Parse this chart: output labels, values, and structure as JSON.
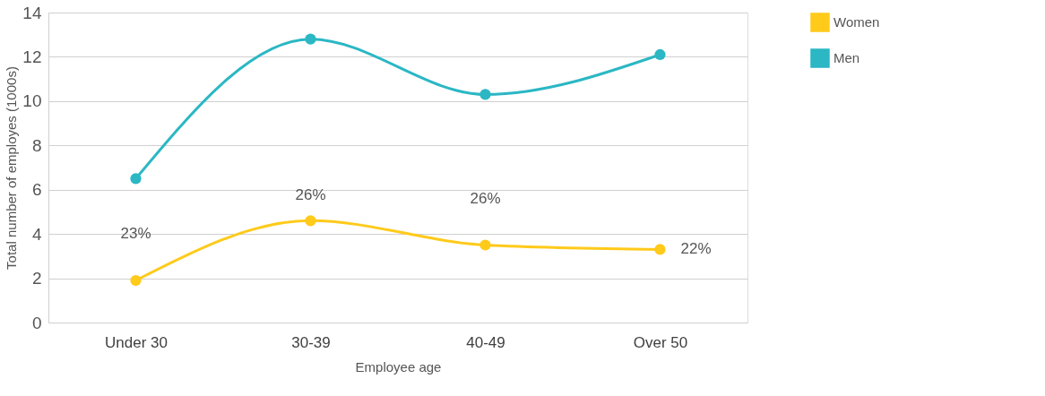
{
  "chart_data": {
    "type": "line",
    "xlabel": "Employee age",
    "ylabel": "Total number of employes (1000s)",
    "categories": [
      "Under 30",
      "30-39",
      "40-49",
      "Over 50"
    ],
    "series": [
      {
        "name": "Women",
        "color": "#ffca1a",
        "values": [
          1.9,
          4.6,
          3.5,
          3.3
        ]
      },
      {
        "name": "Men",
        "color": "#2bb7c4",
        "values": [
          6.5,
          12.8,
          10.3,
          12.1
        ]
      }
    ],
    "ylim": [
      0,
      14
    ],
    "yticks": [
      0,
      2,
      4,
      6,
      8,
      10,
      12,
      14
    ],
    "annotations": [
      {
        "text": "23%",
        "x": "Under 30",
        "y": 1.9
      },
      {
        "text": "26%",
        "x": "30-39",
        "y": 4.6
      },
      {
        "text": "26%",
        "x": "40-49",
        "y": 3.5
      },
      {
        "text": "22%",
        "x": "Over 50",
        "y": 3.3
      }
    ],
    "grid": "y",
    "legend": "right",
    "marker": "circle",
    "line_style": "solid"
  }
}
